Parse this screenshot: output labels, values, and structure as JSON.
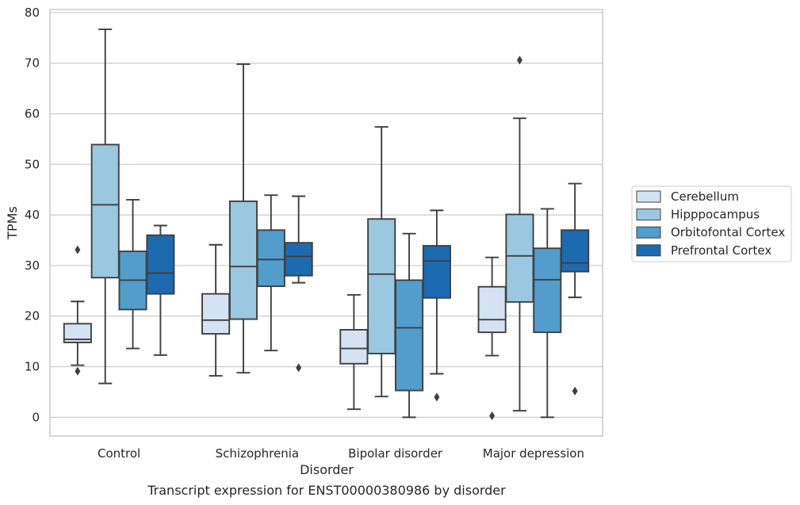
{
  "chart_data": {
    "type": "box",
    "caption": "Transcript expression for ENST00000380986 by disorder",
    "xlabel": "Disorder",
    "ylabel": "TPMs",
    "ylim": [
      -3.7,
      80.6
    ],
    "yticks": [
      0,
      10,
      20,
      30,
      40,
      50,
      60,
      70,
      80
    ],
    "grid": "horizontal",
    "legend_placement": "right-outside",
    "categories": [
      "Control",
      "Schizophrenia",
      "Bipolar disorder",
      "Major depression"
    ],
    "series": [
      {
        "name": "Cerebellum",
        "color": "#d3e3f3",
        "boxes": [
          {
            "whisker_low": 10.3,
            "q1": 14.8,
            "median": 15.4,
            "q3": 18.5,
            "whisker_high": 22.9,
            "outliers": [
              33.1,
              9.1
            ]
          },
          {
            "whisker_low": 8.2,
            "q1": 16.5,
            "median": 19.2,
            "q3": 24.4,
            "whisker_high": 34.1,
            "outliers": []
          },
          {
            "whisker_low": 1.6,
            "q1": 10.6,
            "median": 13.6,
            "q3": 17.3,
            "whisker_high": 24.2,
            "outliers": []
          },
          {
            "whisker_low": 12.2,
            "q1": 16.8,
            "median": 19.3,
            "q3": 25.8,
            "whisker_high": 31.6,
            "outliers": [
              0.3
            ]
          }
        ]
      },
      {
        "name": "Hipppocampus",
        "color": "#9ac8e0",
        "boxes": [
          {
            "whisker_low": 6.7,
            "q1": 27.6,
            "median": 42.0,
            "q3": 53.9,
            "whisker_high": 76.7,
            "outliers": []
          },
          {
            "whisker_low": 8.8,
            "q1": 19.4,
            "median": 29.8,
            "q3": 42.7,
            "whisker_high": 69.8,
            "outliers": []
          },
          {
            "whisker_low": 4.1,
            "q1": 12.6,
            "median": 28.3,
            "q3": 39.2,
            "whisker_high": 57.4,
            "outliers": []
          },
          {
            "whisker_low": 1.3,
            "q1": 22.8,
            "median": 31.9,
            "q3": 40.1,
            "whisker_high": 59.1,
            "outliers": [
              70.6
            ]
          }
        ]
      },
      {
        "name": "Orbitofontal Cortex",
        "color": "#529dcc",
        "boxes": [
          {
            "whisker_low": 13.6,
            "q1": 21.3,
            "median": 27.1,
            "q3": 32.8,
            "whisker_high": 43.0,
            "outliers": []
          },
          {
            "whisker_low": 13.2,
            "q1": 25.9,
            "median": 31.2,
            "q3": 37.0,
            "whisker_high": 43.9,
            "outliers": []
          },
          {
            "whisker_low": 0.0,
            "q1": 5.3,
            "median": 17.7,
            "q3": 27.1,
            "whisker_high": 36.3,
            "outliers": []
          },
          {
            "whisker_low": 0.0,
            "q1": 16.8,
            "median": 27.2,
            "q3": 33.4,
            "whisker_high": 41.2,
            "outliers": []
          }
        ]
      },
      {
        "name": "Prefrontal Cortex",
        "color": "#1c6aaf",
        "boxes": [
          {
            "whisker_low": 12.3,
            "q1": 24.4,
            "median": 28.5,
            "q3": 36.0,
            "whisker_high": 37.9,
            "outliers": []
          },
          {
            "whisker_low": 26.6,
            "q1": 28.0,
            "median": 31.8,
            "q3": 34.5,
            "whisker_high": 43.7,
            "outliers": [
              9.8
            ]
          },
          {
            "whisker_low": 8.6,
            "q1": 23.6,
            "median": 30.9,
            "q3": 33.9,
            "whisker_high": 40.9,
            "outliers": [
              4.0
            ]
          },
          {
            "whisker_low": 23.7,
            "q1": 28.8,
            "median": 30.5,
            "q3": 37.0,
            "whisker_high": 46.2,
            "outliers": [
              5.2
            ]
          }
        ]
      }
    ]
  }
}
